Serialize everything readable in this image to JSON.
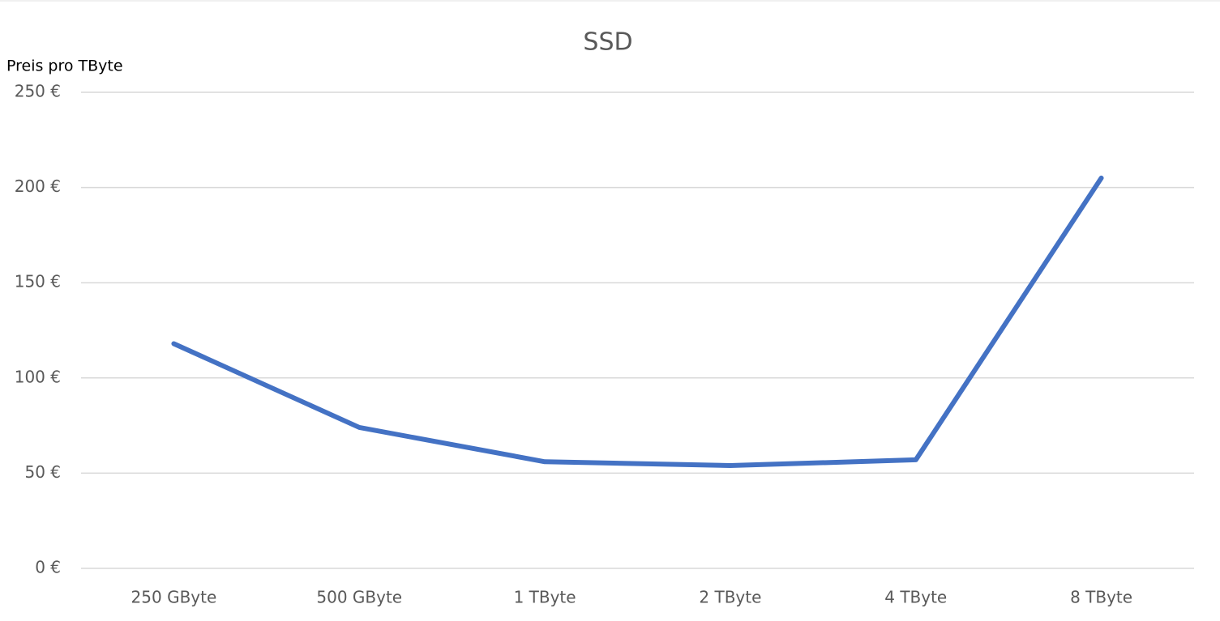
{
  "chart_data": {
    "type": "line",
    "title": "SSD",
    "y_label": "Preis pro TByte",
    "categories": [
      "250 GByte",
      "500 GByte",
      "1 TByte",
      "2 TByte",
      "4 TByte",
      "8 TByte"
    ],
    "series": [
      {
        "name": "SSD",
        "color": "#4472c4",
        "values": [
          118,
          74,
          56,
          54,
          57,
          205
        ]
      }
    ],
    "ylim": [
      0,
      250
    ],
    "yticks": [
      {
        "value": 0,
        "label": "0 €"
      },
      {
        "value": 50,
        "label": "50 €"
      },
      {
        "value": 100,
        "label": "100 €"
      },
      {
        "value": 150,
        "label": "150 €"
      },
      {
        "value": 200,
        "label": "200 €"
      },
      {
        "value": 250,
        "label": "250 €"
      }
    ],
    "grid": true
  }
}
